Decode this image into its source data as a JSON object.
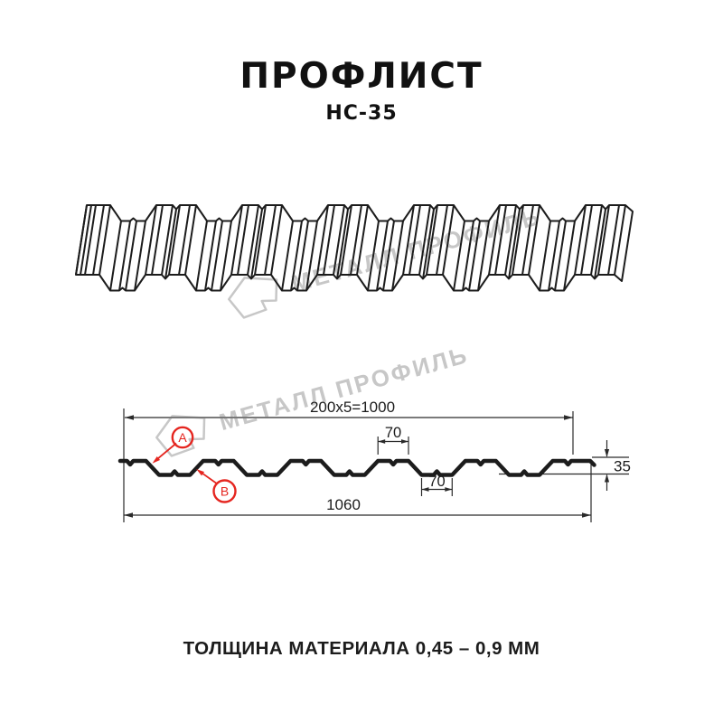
{
  "title": "ПРОФЛИСТ",
  "subtitle": "НС-35",
  "footer": "ТОЛЩИНА МАТЕРИАЛА 0,45 – 0,9 ММ",
  "watermark": {
    "text": "МЕТАЛЛ ПРОФИЛЬ"
  },
  "diagram": {
    "dim_pitch": "200x5=1000",
    "dim_total": "1060",
    "dim_crest": "70",
    "dim_valley": "70",
    "dim_height": "35",
    "label_a": "А",
    "label_b": "В"
  },
  "colors": {
    "line": "#1c1c1c",
    "red": "#e52620",
    "watermark": "#c7c7c7"
  }
}
